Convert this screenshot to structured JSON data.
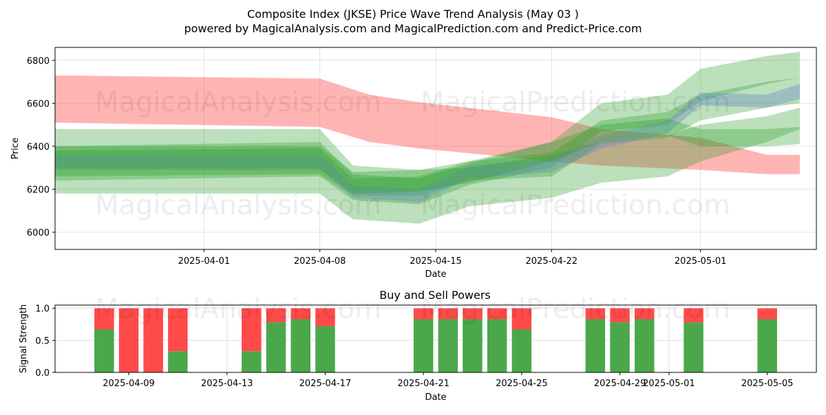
{
  "title": "Composite Index (JKSE) Price Wave Trend Analysis (May 03 )",
  "subtitle": "powered by MagicalAnalysis.com and MagicalPrediction.com and Predict-Price.com",
  "watermarks": [
    "MagicalAnalysis.com",
    "MagicalPrediction.com"
  ],
  "colors": {
    "green": "#2ca02c",
    "red": "#ff4d4d",
    "blue": "#6b8cc9",
    "buy": "#4aa84a",
    "sell": "#ff4a4a"
  },
  "chart_data": [
    {
      "type": "area",
      "xlabel": "Date",
      "ylabel": "Price",
      "ylim": [
        5920,
        6860
      ],
      "xlim": [
        "2025-03-23",
        "2025-05-08"
      ],
      "x_ticks": [
        "2025-04-01",
        "2025-04-08",
        "2025-04-15",
        "2025-04-22",
        "2025-05-01"
      ],
      "y_ticks": [
        6000,
        6200,
        6400,
        6600,
        6800
      ],
      "grid": true,
      "series": [
        {
          "color": "red",
          "x": [
            "2025-03-23",
            "2025-04-08",
            "2025-04-11",
            "2025-04-14",
            "2025-04-22",
            "2025-04-25",
            "2025-05-01",
            "2025-05-05",
            "2025-05-07"
          ],
          "upper": [
            6730,
            6715,
            6640,
            6605,
            6535,
            6480,
            6440,
            6360,
            6360
          ],
          "lower": [
            6510,
            6490,
            6420,
            6390,
            6330,
            6310,
            6290,
            6270,
            6270
          ]
        },
        {
          "color": "green",
          "x": [
            "2025-03-23",
            "2025-04-08",
            "2025-04-10",
            "2025-04-14",
            "2025-04-17",
            "2025-04-22",
            "2025-04-25",
            "2025-04-29",
            "2025-05-01",
            "2025-05-05",
            "2025-05-07"
          ],
          "upper": [
            6480,
            6480,
            6310,
            6290,
            6300,
            6360,
            6420,
            6450,
            6500,
            6540,
            6580
          ],
          "lower": [
            6180,
            6180,
            6060,
            6040,
            6120,
            6160,
            6230,
            6260,
            6330,
            6420,
            6480
          ]
        },
        {
          "color": "green",
          "x": [
            "2025-03-23",
            "2025-04-08",
            "2025-04-10",
            "2025-04-14",
            "2025-04-17",
            "2025-04-22",
            "2025-04-25",
            "2025-04-29",
            "2025-05-01",
            "2025-05-05",
            "2025-05-07"
          ],
          "upper": [
            6400,
            6420,
            6270,
            6250,
            6320,
            6420,
            6600,
            6640,
            6760,
            6820,
            6840
          ],
          "lower": [
            6240,
            6260,
            6150,
            6130,
            6220,
            6300,
            6470,
            6500,
            6610,
            6690,
            6720
          ]
        },
        {
          "color": "green",
          "x": [
            "2025-03-23",
            "2025-04-08",
            "2025-04-10",
            "2025-04-14",
            "2025-04-17",
            "2025-04-22",
            "2025-04-25",
            "2025-04-29",
            "2025-05-01",
            "2025-05-05",
            "2025-05-07"
          ],
          "upper": [
            6380,
            6390,
            6250,
            6260,
            6330,
            6370,
            6520,
            6560,
            6640,
            6700,
            6720
          ],
          "lower": [
            6260,
            6270,
            6170,
            6170,
            6240,
            6260,
            6410,
            6440,
            6520,
            6580,
            6600
          ]
        },
        {
          "color": "blue",
          "x": [
            "2025-03-23",
            "2025-04-08",
            "2025-04-10",
            "2025-04-14",
            "2025-04-17",
            "2025-04-22",
            "2025-04-25",
            "2025-04-29",
            "2025-05-01",
            "2025-05-05",
            "2025-05-07"
          ],
          "upper": [
            6360,
            6360,
            6220,
            6200,
            6310,
            6340,
            6450,
            6520,
            6650,
            6640,
            6690
          ],
          "lower": [
            6300,
            6300,
            6160,
            6140,
            6250,
            6280,
            6390,
            6460,
            6590,
            6580,
            6620
          ]
        },
        {
          "color": "green",
          "x": [
            "2025-03-23",
            "2025-04-08",
            "2025-04-10",
            "2025-04-14",
            "2025-04-17",
            "2025-04-22",
            "2025-04-25",
            "2025-04-29",
            "2025-05-01",
            "2025-05-05",
            "2025-05-07"
          ],
          "upper": [
            6400,
            6400,
            6280,
            6290,
            6330,
            6420,
            6500,
            6530,
            6480,
            6480,
            6490
          ],
          "lower": [
            6290,
            6290,
            6180,
            6190,
            6230,
            6330,
            6420,
            6450,
            6400,
            6400,
            6410
          ]
        }
      ]
    },
    {
      "type": "bar",
      "title": "Buy and Sell Powers",
      "xlabel": "Date",
      "ylabel": "Signal Strength",
      "ylim": [
        0,
        1.05
      ],
      "xlim": [
        "2025-04-06",
        "2025-05-07"
      ],
      "x_ticks": [
        "2025-04-09",
        "2025-04-13",
        "2025-04-17",
        "2025-04-21",
        "2025-04-25",
        "2025-04-29",
        "2025-05-01",
        "2025-05-05"
      ],
      "y_ticks": [
        "0.0",
        "0.5",
        "1.0"
      ],
      "grid": true,
      "categories": [
        "2025-04-08",
        "2025-04-09",
        "2025-04-10",
        "2025-04-11",
        "2025-04-14",
        "2025-04-15",
        "2025-04-16",
        "2025-04-17",
        "2025-04-21",
        "2025-04-22",
        "2025-04-23",
        "2025-04-24",
        "2025-04-25",
        "2025-04-28",
        "2025-04-29",
        "2025-04-30",
        "2025-05-02",
        "2025-05-05"
      ],
      "series": [
        {
          "color": "buy",
          "values": [
            0.67,
            0,
            0,
            0.33,
            0.33,
            0.78,
            0.83,
            0.72,
            0.83,
            0.83,
            0.83,
            0.83,
            0.67,
            0.83,
            0.78,
            0.83,
            0.78,
            0.83
          ]
        },
        {
          "color": "sell",
          "values": [
            0.33,
            1,
            1,
            0.67,
            0.67,
            0.22,
            0.17,
            0.28,
            0.17,
            0.17,
            0.17,
            0.17,
            0.33,
            0.17,
            0.22,
            0.17,
            0.22,
            0.17
          ]
        }
      ]
    }
  ]
}
